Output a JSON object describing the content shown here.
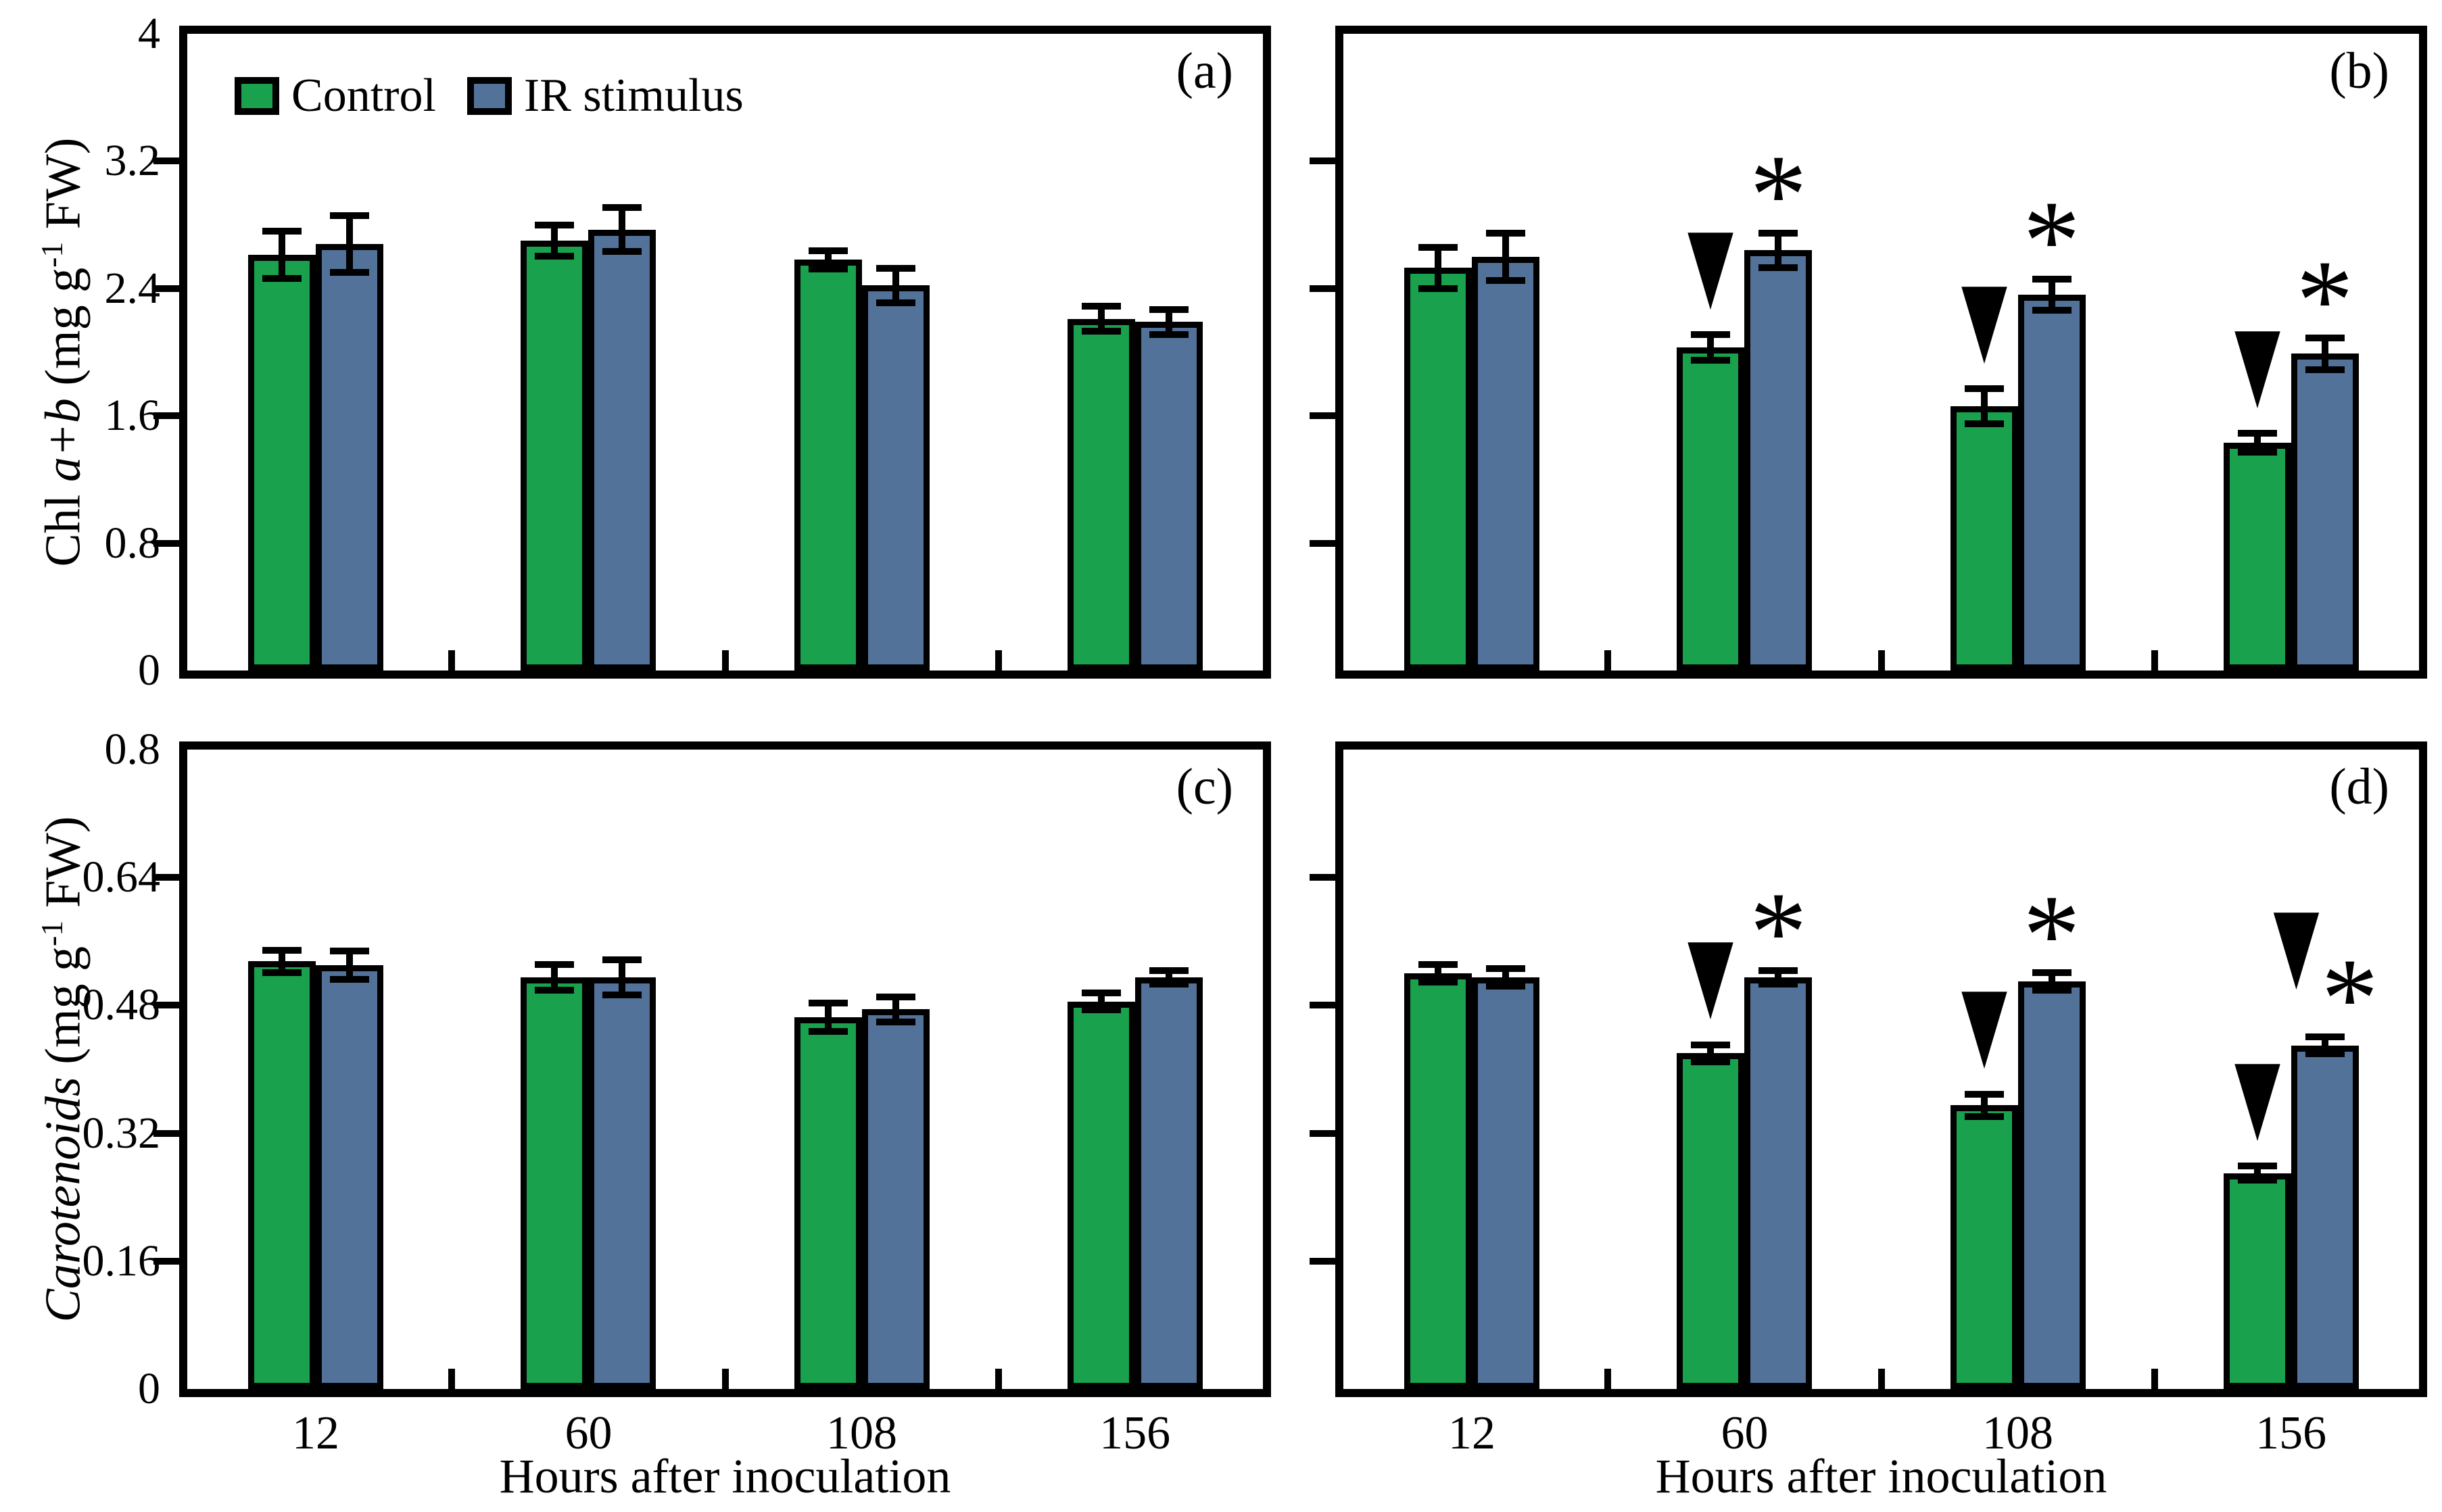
{
  "figure": {
    "x_title": "Hours after inoculation",
    "categories": [
      "12",
      "60",
      "108",
      "156"
    ],
    "legend": {
      "items": [
        {
          "label": "Control",
          "color": "#19a14d"
        },
        {
          "label": "IR stimulus",
          "color": "#527299"
        }
      ]
    },
    "colors": {
      "control": "#19a14d",
      "ir_stimulus": "#527299",
      "axis": "#000000"
    },
    "markers": {
      "down_triangle": "▼",
      "asterisk": "*"
    },
    "ylabel_top": {
      "pre": "Chl ",
      "italic": "a+b",
      "unit_pre": " (mg g",
      "sup": "-1",
      "unit_post": " FW)"
    },
    "ylabel_bottom": {
      "italic": "Carotenoids",
      "unit_pre": " (mg g",
      "sup": "-1",
      "unit_post": " FW)"
    }
  },
  "chart_data": [
    {
      "id": "a",
      "label": "(a)",
      "type": "bar",
      "ylabel": "Chl a+b (mg g-1 FW)",
      "ylim": [
        0,
        4
      ],
      "yticks": [
        0,
        0.8,
        1.6,
        2.4,
        3.2,
        4
      ],
      "ytick_labels": [
        "0",
        "0.8",
        "1.6",
        "2.4",
        "3.2",
        "4"
      ],
      "show_ytick_labels": true,
      "show_xtick_labels": false,
      "categories": [
        "12",
        "60",
        "108",
        "156"
      ],
      "series": [
        {
          "name": "Control",
          "color": "#19a14d",
          "values": [
            2.61,
            2.7,
            2.58,
            2.21
          ],
          "errors": [
            0.17,
            0.12,
            0.08,
            0.1
          ],
          "markers": [
            "",
            "",
            "",
            ""
          ]
        },
        {
          "name": "IR stimulus",
          "color": "#527299",
          "values": [
            2.68,
            2.77,
            2.42,
            2.19
          ],
          "errors": [
            0.2,
            0.16,
            0.13,
            0.1
          ],
          "markers": [
            "",
            "",
            "",
            ""
          ]
        }
      ]
    },
    {
      "id": "b",
      "label": "(b)",
      "type": "bar",
      "ylabel": "",
      "ylim": [
        0,
        4
      ],
      "yticks": [
        0,
        0.8,
        1.6,
        2.4,
        3.2,
        4
      ],
      "ytick_labels": [],
      "show_ytick_labels": false,
      "show_xtick_labels": false,
      "categories": [
        "12",
        "60",
        "108",
        "156"
      ],
      "series": [
        {
          "name": "Control",
          "color": "#19a14d",
          "values": [
            2.53,
            2.03,
            1.66,
            1.43
          ],
          "errors": [
            0.15,
            0.1,
            0.13,
            0.08
          ],
          "markers": [
            "",
            "down-triangle",
            "down-triangle",
            "down-triangle"
          ]
        },
        {
          "name": "IR stimulus",
          "color": "#527299",
          "values": [
            2.6,
            2.64,
            2.36,
            1.99
          ],
          "errors": [
            0.17,
            0.13,
            0.12,
            0.12
          ],
          "markers": [
            "",
            "asterisk",
            "asterisk",
            "asterisk"
          ]
        }
      ]
    },
    {
      "id": "c",
      "label": "(c)",
      "type": "bar",
      "ylabel": "Carotenoids (mg g-1 FW)",
      "ylim": [
        0,
        0.8
      ],
      "yticks": [
        0,
        0.16,
        0.32,
        0.48,
        0.64,
        0.8
      ],
      "ytick_labels": [
        "0",
        "0.16",
        "0.32",
        "0.48",
        "0.64",
        "0.8"
      ],
      "show_ytick_labels": true,
      "show_xtick_labels": true,
      "categories": [
        "12",
        "60",
        "108",
        "156"
      ],
      "series": [
        {
          "name": "Control",
          "color": "#19a14d",
          "values": [
            0.535,
            0.515,
            0.465,
            0.485
          ],
          "errors": [
            0.018,
            0.02,
            0.022,
            0.015
          ],
          "markers": [
            "",
            "",
            "",
            ""
          ]
        },
        {
          "name": "IR stimulus",
          "color": "#527299",
          "values": [
            0.53,
            0.515,
            0.475,
            0.515
          ],
          "errors": [
            0.022,
            0.026,
            0.02,
            0.013
          ],
          "markers": [
            "",
            "",
            "",
            ""
          ]
        }
      ]
    },
    {
      "id": "d",
      "label": "(d)",
      "type": "bar",
      "ylabel": "",
      "ylim": [
        0,
        0.8
      ],
      "yticks": [
        0,
        0.16,
        0.32,
        0.48,
        0.64,
        0.8
      ],
      "ytick_labels": [],
      "show_ytick_labels": false,
      "show_xtick_labels": true,
      "categories": [
        "12",
        "60",
        "108",
        "156"
      ],
      "series": [
        {
          "name": "Control",
          "color": "#19a14d",
          "values": [
            0.52,
            0.42,
            0.355,
            0.27
          ],
          "errors": [
            0.015,
            0.015,
            0.018,
            0.013
          ],
          "markers": [
            "",
            "down-triangle",
            "down-triangle",
            "down-triangle"
          ]
        },
        {
          "name": "IR stimulus",
          "color": "#527299",
          "values": [
            0.515,
            0.515,
            0.51,
            0.43
          ],
          "errors": [
            0.015,
            0.013,
            0.015,
            0.015
          ],
          "markers": [
            "",
            "asterisk",
            "asterisk",
            "down-triangle asterisk"
          ]
        }
      ]
    }
  ]
}
